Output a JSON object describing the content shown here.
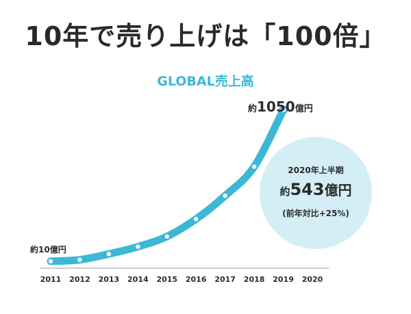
{
  "headline": "10年で売り上げは「100倍」",
  "chart_data": {
    "type": "line",
    "title": "GLOBAL売上高",
    "xlabel": "",
    "ylabel": "",
    "categories": [
      "2011",
      "2012",
      "2013",
      "2014",
      "2015",
      "2016",
      "2017",
      "2018",
      "2019",
      "2020"
    ],
    "series": [
      {
        "name": "GLOBAL売上高 (億円)",
        "x": [
          "2011",
          "2012",
          "2013",
          "2014",
          "2015",
          "2016",
          "2017",
          "2018",
          "2019"
        ],
        "values": [
          10,
          20,
          60,
          110,
          180,
          300,
          460,
          660,
          1050
        ]
      }
    ],
    "ylim": [
      0,
      1100
    ],
    "grid": false,
    "annotations": {
      "end_label": {
        "prefix": "約",
        "value": "1050",
        "suffix": "億円"
      },
      "start_label": "約10億円",
      "highlight": {
        "period": "2020年上半期",
        "prefix": "約",
        "value": "543",
        "suffix": "億円",
        "growth": "(前年対比+25%)"
      }
    },
    "colors": {
      "line": "#3cb8d6",
      "marker": "#ffffff",
      "bubble": "#d4eef5",
      "axis": "#9a9a9a",
      "text": "#2b2b2b"
    }
  }
}
